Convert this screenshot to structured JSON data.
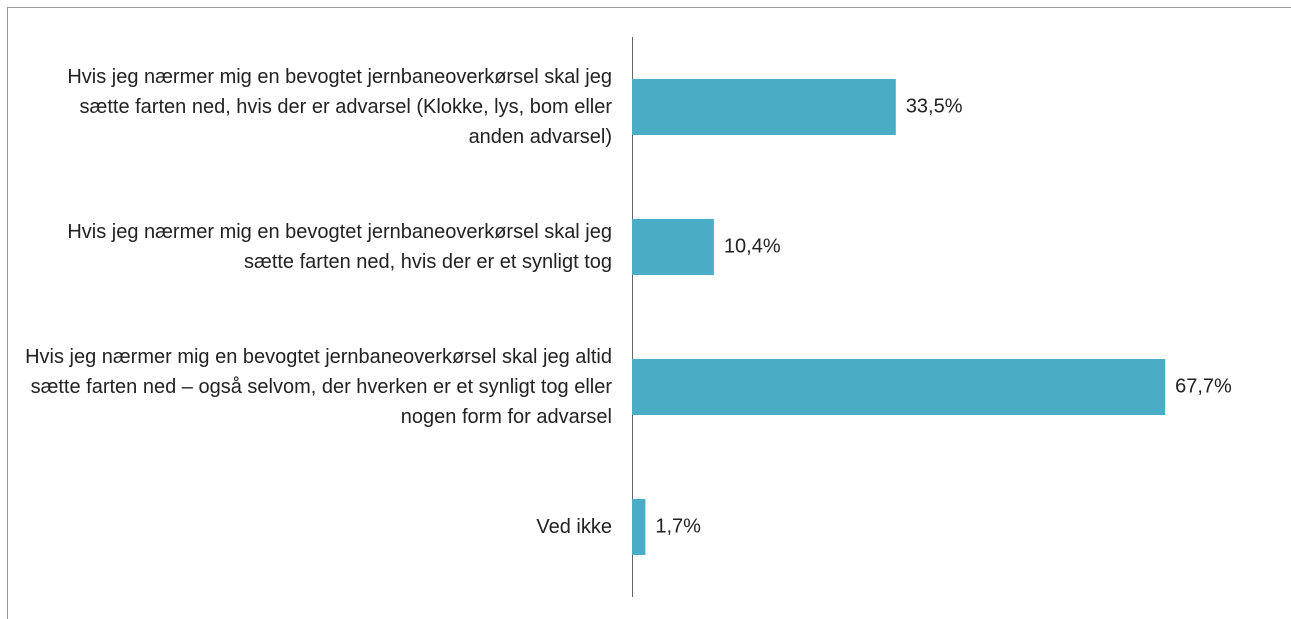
{
  "chart_data": {
    "type": "barh",
    "categories": [
      "Hvis jeg nærmer mig en bevogtet jernbaneoverkørsel skal jeg sætte farten ned, hvis der er advarsel (Klokke, lys, bom eller anden advarsel)",
      "Hvis jeg nærmer mig en bevogtet jernbaneoverkørsel skal jeg sætte farten ned, hvis der er et synligt tog",
      "Hvis jeg nærmer mig en bevogtet jernbaneoverkørsel skal jeg altid sætte farten ned – også selvom, der hverken er et synligt tog eller nogen form for advarsel",
      "Ved ikke"
    ],
    "values": [
      33.5,
      10.4,
      67.7,
      1.7
    ],
    "value_labels": [
      "33,5%",
      "10,4%",
      "67,7%",
      "1,7%"
    ],
    "color": "#4bacc6",
    "xlim": [
      0,
      80
    ]
  }
}
